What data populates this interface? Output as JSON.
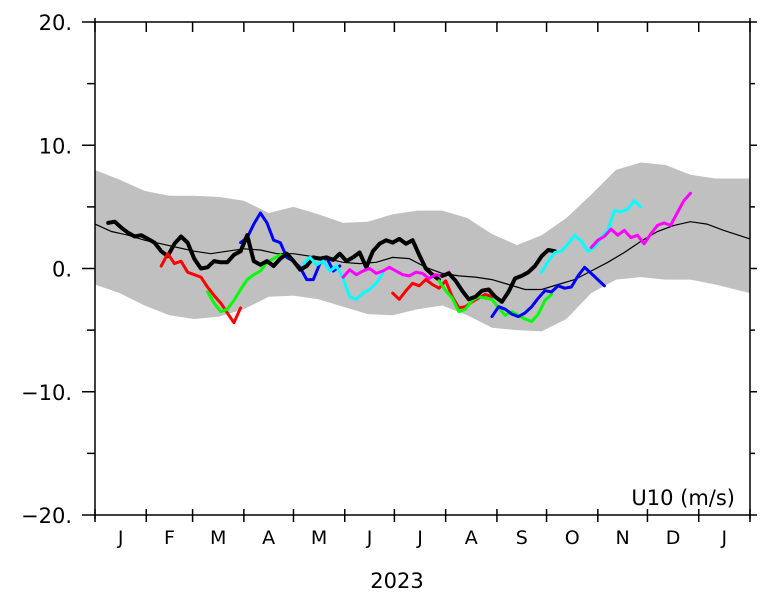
{
  "chart_data": {
    "type": "line",
    "variable_label": "U10 (m/s)",
    "year_label": "2023",
    "yticks": [
      "20.",
      "10.",
      "0.",
      "−10.",
      "−20."
    ],
    "ytick_values": [
      20,
      10,
      0,
      -10,
      -20
    ],
    "ylim": [
      -20,
      20
    ],
    "month_labels": [
      "J",
      "F",
      "M",
      "A",
      "M",
      "J",
      "J",
      "A",
      "S",
      "O",
      "N",
      "D",
      "J"
    ],
    "xlim_days": [
      0,
      396
    ],
    "grid": false,
    "envelope": {
      "color": "#c0c0c0",
      "x": [
        0,
        15,
        30,
        45,
        60,
        75,
        90,
        105,
        120,
        135,
        150,
        165,
        180,
        195,
        210,
        225,
        240,
        255,
        270,
        285,
        300,
        315,
        330,
        345,
        360,
        375,
        396
      ],
      "upper": [
        8.0,
        7.2,
        6.3,
        5.9,
        5.9,
        5.8,
        5.5,
        4.5,
        5.0,
        4.4,
        3.7,
        3.8,
        4.4,
        4.7,
        4.7,
        4.1,
        2.8,
        1.9,
        2.7,
        4.1,
        6.0,
        8.0,
        8.6,
        8.4,
        7.6,
        7.3,
        7.3
      ],
      "lower": [
        -1.3,
        -2.0,
        -3.0,
        -3.8,
        -4.1,
        -3.9,
        -3.3,
        -2.3,
        -2.2,
        -2.5,
        -3.1,
        -3.7,
        -3.8,
        -3.3,
        -3.0,
        -3.8,
        -4.8,
        -5.0,
        -5.1,
        -4.1,
        -2.0,
        -0.9,
        -0.7,
        -0.9,
        -0.9,
        -1.3,
        -2.0
      ]
    },
    "climatology": {
      "color": "#000000",
      "x": [
        0,
        10,
        20,
        30,
        40,
        50,
        60,
        70,
        80,
        90,
        100,
        110,
        120,
        130,
        140,
        150,
        160,
        170,
        180,
        190,
        200,
        210,
        220,
        230,
        240,
        250,
        260,
        270,
        280,
        290,
        300,
        310,
        320,
        330,
        340,
        350,
        360,
        370,
        380,
        396
      ],
      "y": [
        3.6,
        3.0,
        2.7,
        2.3,
        2.0,
        1.7,
        1.4,
        1.2,
        1.4,
        1.6,
        1.5,
        1.2,
        1.2,
        1.0,
        0.8,
        0.5,
        0.4,
        0.5,
        0.9,
        0.8,
        0.1,
        -0.4,
        -0.6,
        -0.7,
        -0.9,
        -1.3,
        -1.7,
        -1.7,
        -1.3,
        -0.9,
        -0.2,
        0.5,
        1.3,
        2.2,
        3.0,
        3.5,
        3.8,
        3.6,
        3.1,
        2.4
      ]
    },
    "series": [
      {
        "color": "#000000",
        "width": 4,
        "x": [
          8,
          12,
          16,
          20,
          24,
          28,
          32,
          36,
          40,
          44,
          48,
          52,
          56,
          60,
          64,
          68,
          72,
          76,
          80,
          84,
          88
        ],
        "y": [
          3.7,
          3.8,
          3.3,
          2.9,
          2.6,
          2.7,
          2.4,
          2.1,
          1.4,
          1.0,
          2.0,
          2.6,
          2.1,
          0.8,
          0.0,
          0.1,
          0.6,
          0.5,
          0.5,
          1.1,
          1.4
        ]
      },
      {
        "color": "#ff0000",
        "width": 3,
        "x": [
          40,
          44,
          48,
          52,
          56,
          60,
          64,
          68,
          72,
          76,
          80,
          84,
          88
        ],
        "y": [
          0.2,
          1.2,
          0.4,
          0.6,
          -0.3,
          -0.5,
          -0.7,
          -1.5,
          -2.2,
          -2.8,
          -3.6,
          -4.4,
          -3.2
        ]
      },
      {
        "color": "#00ff00",
        "width": 3,
        "x": [
          68,
          72,
          76,
          80,
          84,
          88,
          92,
          96,
          100,
          104,
          108,
          112,
          116
        ],
        "y": [
          -1.9,
          -2.8,
          -3.5,
          -3.3,
          -2.6,
          -1.7,
          -0.9,
          -0.5,
          -0.2,
          0.5,
          0.8,
          1.1,
          0.9
        ]
      },
      {
        "color": "#0000ff",
        "width": 3,
        "x": [
          88,
          92,
          96,
          100,
          104,
          108,
          112,
          116,
          120,
          124,
          128,
          132,
          136,
          140,
          144,
          148
        ],
        "y": [
          2.1,
          2.5,
          3.6,
          4.5,
          3.7,
          2.3,
          2.1,
          0.9,
          0.6,
          0.1,
          -0.9,
          -0.9,
          0.4,
          0.9,
          -0.2,
          0.2
        ]
      },
      {
        "color": "#000000",
        "width": 4,
        "x": [
          88,
          92,
          96,
          100,
          104,
          108,
          112,
          116,
          120,
          124,
          128,
          132,
          136,
          140,
          144,
          148,
          152,
          156,
          160,
          164,
          168,
          172,
          176,
          180,
          184,
          188,
          192,
          196,
          200,
          204,
          208
        ],
        "y": [
          1.4,
          2.7,
          0.6,
          0.3,
          0.6,
          0.2,
          0.8,
          1.2,
          0.6,
          -0.1,
          0.2,
          0.9,
          0.8,
          0.9,
          0.7,
          1.2,
          0.6,
          0.9,
          1.3,
          0.1,
          1.4,
          2.0,
          2.3,
          2.1,
          2.4,
          2.0,
          2.3,
          1.1,
          0.0,
          -0.5,
          -0.9
        ]
      },
      {
        "color": "#00ffff",
        "width": 3,
        "x": [
          126,
          130,
          134,
          138,
          142,
          146,
          150,
          154,
          158,
          162,
          166,
          170,
          174
        ],
        "y": [
          0.4,
          0.9,
          0.3,
          0.6,
          -0.2,
          0.2,
          -0.8,
          -2.3,
          -2.5,
          -2.0,
          -1.7,
          -1.2,
          -0.4
        ]
      },
      {
        "color": "#ff00ff",
        "width": 3,
        "x": [
          150,
          154,
          158,
          162,
          166,
          170,
          174,
          178,
          182,
          186,
          190,
          194,
          198,
          202,
          206,
          210,
          214
        ],
        "y": [
          -0.7,
          -0.1,
          -0.5,
          -0.2,
          0.0,
          -0.4,
          -0.2,
          0.1,
          -0.2,
          -0.5,
          -0.6,
          -0.3,
          -0.4,
          -0.8,
          -0.5,
          -0.6,
          -0.3
        ]
      },
      {
        "color": "#ff0000",
        "width": 3,
        "x": [
          180,
          184,
          188,
          192,
          196,
          200,
          204,
          208,
          212,
          216,
          220,
          224,
          228,
          232,
          236,
          240
        ],
        "y": [
          -2.0,
          -2.5,
          -1.8,
          -1.2,
          -1.4,
          -0.9,
          -1.3,
          -1.6,
          -1.0,
          -2.3,
          -3.2,
          -3.1,
          -2.7,
          -2.4,
          -2.1,
          -2.3
        ]
      },
      {
        "color": "#00ff00",
        "width": 3,
        "x": [
          208,
          212,
          216,
          220,
          224,
          228,
          232,
          236,
          240,
          244,
          248,
          252,
          256,
          260,
          264,
          268,
          272,
          276
        ],
        "y": [
          -1.0,
          -1.8,
          -2.4,
          -3.5,
          -3.3,
          -2.6,
          -2.3,
          -2.4,
          -2.5,
          -3.2,
          -3.8,
          -3.5,
          -3.8,
          -4.1,
          -4.3,
          -3.7,
          -2.6,
          -2.1
        ]
      },
      {
        "color": "#000000",
        "width": 4,
        "x": [
          210,
          214,
          218,
          222,
          226,
          230,
          234,
          238,
          242,
          246,
          250,
          254,
          258,
          262,
          266,
          270,
          274,
          278
        ],
        "y": [
          -0.6,
          -0.4,
          -1.0,
          -1.8,
          -2.5,
          -2.3,
          -1.8,
          -1.7,
          -2.3,
          -2.7,
          -1.9,
          -0.8,
          -0.6,
          -0.3,
          0.2,
          1.0,
          1.5,
          1.4
        ]
      },
      {
        "color": "#0000ff",
        "width": 3,
        "x": [
          240,
          244,
          248,
          252,
          256,
          260,
          264,
          268,
          272,
          276,
          280,
          284,
          288,
          292,
          296,
          300,
          304,
          308
        ],
        "y": [
          -3.9,
          -3.1,
          -3.3,
          -3.7,
          -3.9,
          -3.6,
          -3.1,
          -2.4,
          -1.8,
          -1.9,
          -1.4,
          -1.6,
          -1.5,
          -0.6,
          0.1,
          -0.4,
          -0.9,
          -1.4
        ]
      },
      {
        "color": "#00ffff",
        "width": 3,
        "x": [
          270,
          274,
          278,
          282,
          286,
          290,
          294,
          298,
          302,
          306,
          310,
          314,
          318,
          322,
          326,
          330
        ],
        "y": [
          -0.3,
          0.6,
          1.3,
          1.4,
          2.0,
          2.7,
          2.2,
          1.4,
          1.7,
          2.5,
          3.1,
          4.7,
          4.6,
          4.8,
          5.5,
          5.0
        ]
      },
      {
        "color": "#ff00ff",
        "width": 3,
        "x": [
          300,
          304,
          308,
          312,
          316,
          320,
          324,
          328,
          332,
          336,
          340,
          344,
          348,
          352,
          356,
          360
        ],
        "y": [
          1.7,
          2.3,
          2.6,
          3.2,
          2.7,
          3.1,
          2.5,
          2.7,
          2.0,
          2.8,
          3.5,
          3.7,
          3.5,
          4.5,
          5.5,
          6.1
        ]
      }
    ]
  }
}
